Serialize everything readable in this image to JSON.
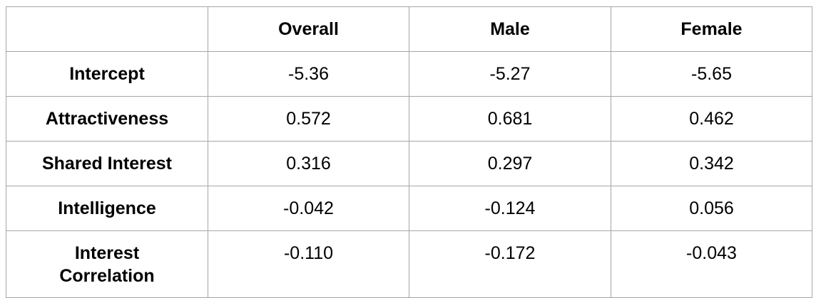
{
  "table": {
    "headers": [
      "",
      "Overall",
      "Male",
      "Female"
    ],
    "rows": [
      {
        "label": "Intercept",
        "values": [
          "-5.36",
          "-5.27",
          "-5.65"
        ]
      },
      {
        "label": "Attractiveness",
        "values": [
          "0.572",
          "0.681",
          "0.462"
        ]
      },
      {
        "label": "Shared Interest",
        "values": [
          "0.316",
          "0.297",
          "0.342"
        ]
      },
      {
        "label": "Intelligence",
        "values": [
          "-0.042",
          "-0.124",
          "0.056"
        ]
      },
      {
        "label_lines": [
          "Interest",
          "Correlation"
        ],
        "values": [
          "-0.110",
          "-0.172",
          "-0.043"
        ]
      }
    ]
  }
}
